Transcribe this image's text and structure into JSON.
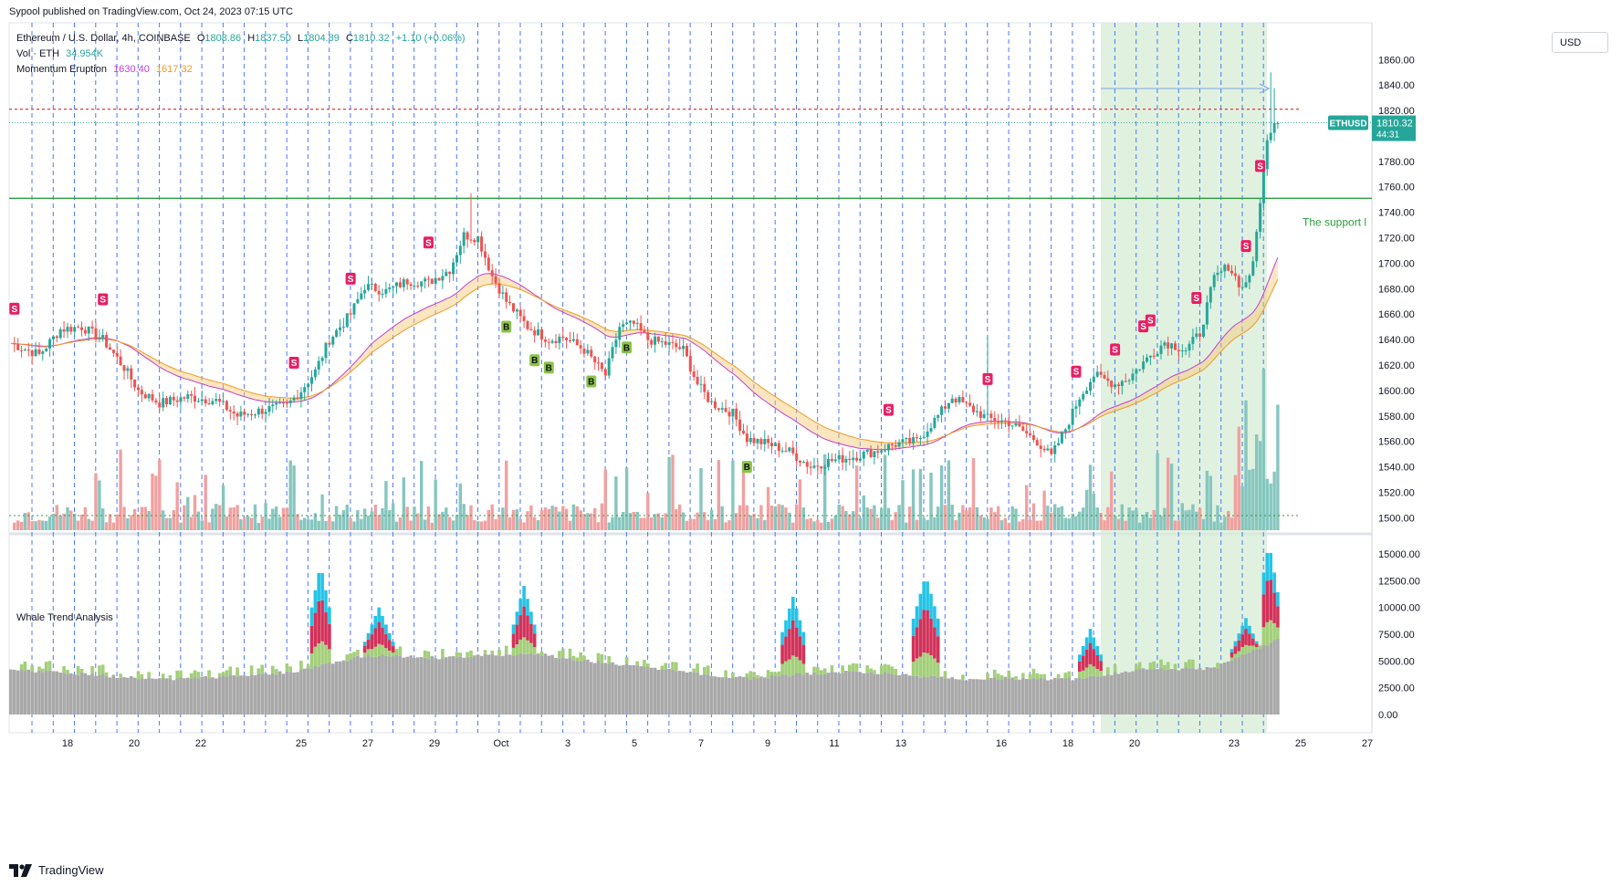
{
  "header": {
    "publisher": "Sypool published on TradingView.com, Oct 24, 2023 07:15 UTC"
  },
  "legend": {
    "symbol": "Ethereum / U.S. Dollar, 4h, COINBASE",
    "ohlc": {
      "o_label": "O",
      "o": "1808.86",
      "h_label": "H",
      "h": "1837.50",
      "l_label": "L",
      "l": "1804.89",
      "c_label": "C",
      "c": "1810.32",
      "chg": "+1.10 (+0.06%)"
    },
    "vol_label": "Vol · ETH",
    "vol_value": "34.954K",
    "mom_label": "Momentum Eruption",
    "mom_v1": "1630.40",
    "mom_v2": "1617.32",
    "whale_label": "Whale Trend Analysis"
  },
  "currency_button": "USD",
  "price_tag": {
    "symbol": "ETHUSD",
    "price": "1810.32",
    "countdown": "44:31"
  },
  "support_text": "The support l",
  "footer": {
    "brand": "TradingView"
  },
  "colors": {
    "up": "#26a69a",
    "down": "#ef5350",
    "support": "#2e9e3e",
    "highlight": "#d7ecd6",
    "grid": "#2962ff",
    "resistance": "#e53935"
  },
  "chart_data": [
    {
      "type": "candlestick",
      "title": "Ethereum / U.S. Dollar, 4h, COINBASE",
      "y_ticks": [
        1500,
        1520,
        1540,
        1560,
        1580,
        1600,
        1620,
        1640,
        1660,
        1680,
        1700,
        1720,
        1740,
        1760,
        1780,
        1800,
        1820,
        1840,
        1860
      ],
      "ylim": [
        1490,
        1870
      ],
      "x_ticks": [
        "18",
        "20",
        "22",
        "25",
        "27",
        "29",
        "Oct",
        "3",
        "5",
        "7",
        "9",
        "11",
        "13",
        "16",
        "18",
        "20",
        "23",
        "25",
        "27"
      ],
      "close_anchors": [
        [
          0,
          1637
        ],
        [
          8,
          1628
        ],
        [
          14,
          1648
        ],
        [
          20,
          1650
        ],
        [
          26,
          1640
        ],
        [
          32,
          1618
        ],
        [
          36,
          1600
        ],
        [
          42,
          1590
        ],
        [
          50,
          1595
        ],
        [
          58,
          1592
        ],
        [
          64,
          1580
        ],
        [
          72,
          1585
        ],
        [
          78,
          1588
        ],
        [
          82,
          1600
        ],
        [
          86,
          1615
        ],
        [
          90,
          1640
        ],
        [
          96,
          1660
        ],
        [
          100,
          1682
        ],
        [
          106,
          1678
        ],
        [
          112,
          1686
        ],
        [
          118,
          1685
        ],
        [
          124,
          1695
        ],
        [
          128,
          1722
        ],
        [
          132,
          1720
        ],
        [
          136,
          1690
        ],
        [
          140,
          1670
        ],
        [
          146,
          1650
        ],
        [
          152,
          1640
        ],
        [
          156,
          1642
        ],
        [
          162,
          1632
        ],
        [
          168,
          1612
        ],
        [
          172,
          1650
        ],
        [
          176,
          1652
        ],
        [
          180,
          1640
        ],
        [
          186,
          1636
        ],
        [
          190,
          1632
        ],
        [
          194,
          1605
        ],
        [
          198,
          1590
        ],
        [
          204,
          1582
        ],
        [
          208,
          1562
        ],
        [
          214,
          1558
        ],
        [
          220,
          1552
        ],
        [
          226,
          1540
        ],
        [
          232,
          1545
        ],
        [
          238,
          1548
        ],
        [
          244,
          1552
        ],
        [
          250,
          1558
        ],
        [
          256,
          1560
        ],
        [
          262,
          1580
        ],
        [
          266,
          1595
        ],
        [
          270,
          1588
        ],
        [
          276,
          1578
        ],
        [
          282,
          1575
        ],
        [
          286,
          1568
        ],
        [
          290,
          1560
        ],
        [
          294,
          1548
        ],
        [
          298,
          1570
        ],
        [
          302,
          1595
        ],
        [
          306,
          1612
        ],
        [
          312,
          1605
        ],
        [
          316,
          1610
        ],
        [
          320,
          1622
        ],
        [
          326,
          1638
        ],
        [
          332,
          1632
        ],
        [
          336,
          1645
        ],
        [
          340,
          1688
        ],
        [
          344,
          1698
        ],
        [
          348,
          1680
        ],
        [
          351,
          1698
        ],
        [
          353,
          1750
        ],
        [
          355,
          1795
        ],
        [
          357,
          1810
        ]
      ],
      "annotations": {
        "resistance_line": 1821,
        "support_line": 1751,
        "last_price": 1810.32,
        "highlight_range": [
          "19",
          "24"
        ],
        "support_text": "The support l"
      },
      "signals": {
        "sell": [
          1,
          26,
          80,
          96,
          118,
          248,
          276,
          301,
          312,
          320,
          322,
          335,
          349,
          353
        ],
        "buy": [
          140,
          148,
          152,
          164,
          174,
          208
        ]
      },
      "legend": {
        "ohlc": {
          "o": 1808.86,
          "h": 1837.5,
          "l": 1804.89,
          "c": 1810.32
        },
        "change": "+1.10 (+0.06%)"
      }
    },
    {
      "type": "bar",
      "title": "Vol · ETH",
      "last_value": "34.954K"
    },
    {
      "type": "area",
      "title": "Momentum Eruption",
      "series": [
        {
          "name": "1630.40"
        },
        {
          "name": "1617.32"
        }
      ]
    },
    {
      "type": "bar",
      "title": "Whale Trend Analysis",
      "y_ticks": [
        0,
        2500,
        5000,
        7500,
        10000,
        12500,
        15000
      ],
      "ylim": [
        -1500,
        16000
      ],
      "stacked_anchors": [
        [
          0,
          4200
        ],
        [
          20,
          3800
        ],
        [
          40,
          3300
        ],
        [
          60,
          3500
        ],
        [
          80,
          4000
        ],
        [
          100,
          5500
        ],
        [
          120,
          5300
        ],
        [
          140,
          5600
        ],
        [
          150,
          5600
        ],
        [
          160,
          5100
        ],
        [
          180,
          4400
        ],
        [
          200,
          3600
        ],
        [
          210,
          3400
        ],
        [
          220,
          3700
        ],
        [
          240,
          4000
        ],
        [
          260,
          3500
        ],
        [
          270,
          3300
        ],
        [
          280,
          3400
        ],
        [
          300,
          3300
        ],
        [
          320,
          4200
        ],
        [
          340,
          4300
        ],
        [
          358,
          7000
        ]
      ],
      "spikes": [
        [
          85,
          90,
          14000
        ],
        [
          100,
          108,
          10000
        ],
        [
          142,
          148,
          12000
        ],
        [
          218,
          224,
          11000
        ],
        [
          255,
          262,
          13000
        ],
        [
          302,
          308,
          8000
        ],
        [
          345,
          353,
          9000
        ],
        [
          353,
          358,
          16000
        ]
      ]
    }
  ]
}
